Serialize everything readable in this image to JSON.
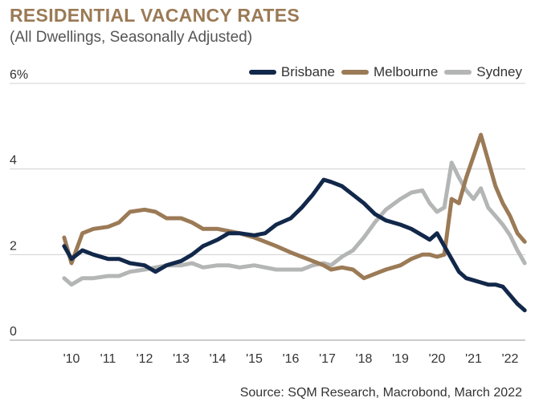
{
  "title": "RESIDENTIAL VACANCY RATES",
  "subtitle": "(All Dwellings, Seasonally Adjusted)",
  "source": "Source: SQM Research, Macrobond, March 2022",
  "colors": {
    "title": "#9a7a55",
    "Brisbane": "#12284a",
    "Melbourne": "#9b7a56",
    "Sydney": "#b4b6b6",
    "grid": "#d0d0d0"
  },
  "chart_data": {
    "type": "line",
    "title": "RESIDENTIAL VACANCY RATES",
    "subtitle": "(All Dwellings, Seasonally Adjusted)",
    "xlabel": "",
    "ylabel": "",
    "x_tick_labels": [
      "'10",
      "'11",
      "'12",
      "'13",
      "'14",
      "'15",
      "'16",
      "'17",
      "'18",
      "'19",
      "'20",
      "'21",
      "'22"
    ],
    "y_tick_labels": [
      "0",
      "2",
      "4",
      "6%"
    ],
    "ylim": [
      0,
      6
    ],
    "xlim": [
      2009.8,
      2022.5
    ],
    "grid": "horizontal",
    "legend_position": "top-right",
    "x": [
      2009.8,
      2010.0,
      2010.3,
      2010.6,
      2011.0,
      2011.3,
      2011.6,
      2012.0,
      2012.3,
      2012.6,
      2013.0,
      2013.3,
      2013.6,
      2014.0,
      2014.3,
      2014.6,
      2015.0,
      2015.3,
      2015.6,
      2016.0,
      2016.3,
      2016.6,
      2016.9,
      2017.1,
      2017.4,
      2017.7,
      2018.0,
      2018.3,
      2018.6,
      2019.0,
      2019.3,
      2019.6,
      2019.8,
      2020.0,
      2020.2,
      2020.4,
      2020.6,
      2020.8,
      2021.0,
      2021.2,
      2021.4,
      2021.6,
      2021.8,
      2022.0,
      2022.2,
      2022.4
    ],
    "series": [
      {
        "name": "Brisbane",
        "values": [
          2.2,
          1.9,
          2.1,
          2.0,
          1.9,
          1.9,
          1.8,
          1.75,
          1.6,
          1.75,
          1.85,
          2.0,
          2.2,
          2.35,
          2.5,
          2.5,
          2.45,
          2.5,
          2.7,
          2.85,
          3.1,
          3.4,
          3.75,
          3.7,
          3.6,
          3.4,
          3.2,
          2.95,
          2.8,
          2.7,
          2.6,
          2.45,
          2.35,
          2.5,
          2.2,
          1.9,
          1.6,
          1.45,
          1.4,
          1.35,
          1.3,
          1.3,
          1.25,
          1.05,
          0.85,
          0.7
        ]
      },
      {
        "name": "Melbourne",
        "values": [
          2.4,
          1.8,
          2.5,
          2.6,
          2.65,
          2.75,
          3.0,
          3.05,
          3.0,
          2.85,
          2.85,
          2.75,
          2.6,
          2.6,
          2.55,
          2.5,
          2.4,
          2.3,
          2.2,
          2.05,
          1.95,
          1.85,
          1.75,
          1.65,
          1.7,
          1.65,
          1.45,
          1.55,
          1.65,
          1.75,
          1.9,
          2.0,
          2.0,
          1.95,
          2.0,
          3.3,
          3.2,
          3.8,
          4.3,
          4.8,
          4.2,
          3.6,
          3.2,
          2.9,
          2.5,
          2.3
        ]
      },
      {
        "name": "Sydney",
        "values": [
          1.45,
          1.3,
          1.45,
          1.45,
          1.5,
          1.5,
          1.6,
          1.65,
          1.7,
          1.75,
          1.75,
          1.8,
          1.7,
          1.75,
          1.75,
          1.7,
          1.75,
          1.7,
          1.65,
          1.65,
          1.65,
          1.75,
          1.8,
          1.75,
          1.95,
          2.1,
          2.4,
          2.75,
          3.05,
          3.3,
          3.45,
          3.5,
          3.2,
          3.0,
          3.1,
          4.15,
          3.8,
          3.5,
          3.3,
          3.55,
          3.1,
          2.9,
          2.7,
          2.45,
          2.1,
          1.8
        ]
      }
    ]
  }
}
